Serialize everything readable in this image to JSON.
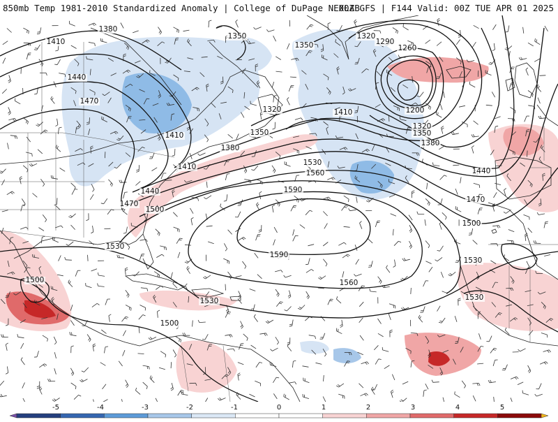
{
  "header": {
    "title_left": "850mb Temp 1981-2010 Standardized Anomaly | College of DuPage NEXLAB",
    "title_right": "00Z GFS | F144 Valid: 00Z TUE APR 01 2025"
  },
  "colorbar": {
    "ticks": [
      "-5",
      "-4",
      "-3",
      "-2",
      "-1",
      "0",
      "1",
      "2",
      "3",
      "4",
      "5"
    ],
    "colors": [
      "#7a4fa8",
      "#243f7e",
      "#3566b0",
      "#5d9bd8",
      "#a7c7e9",
      "#dbe8f6",
      "#ffffff",
      "#ffffff",
      "#f8d3d3",
      "#f0a6a6",
      "#e06a6a",
      "#c62828",
      "#8b0a0a",
      "#f2b51a"
    ]
  },
  "contours": {
    "labels": [
      "1380",
      "1410",
      "1440",
      "1470",
      "1350",
      "1350",
      "1320",
      "1290",
      "1260",
      "1200",
      "1320",
      "1350",
      "1380",
      "1410",
      "1410",
      "1320",
      "1350",
      "1380",
      "1410",
      "1440",
      "1470",
      "1500",
      "1530",
      "1560",
      "1590",
      "1590",
      "1560",
      "1530",
      "1530",
      "1500",
      "1440",
      "1470",
      "1500",
      "1530",
      "1530",
      "1500"
    ]
  }
}
